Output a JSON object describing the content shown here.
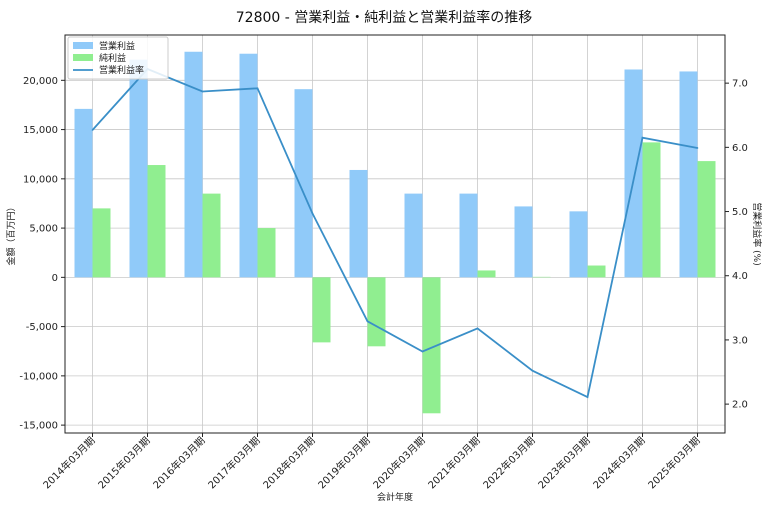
{
  "chart_data": {
    "type": "bar",
    "title": "72800 - 営業利益・純利益と営業利益率の推移",
    "xlabel": "会計年度",
    "ylabel": "金額（百万円）",
    "y2label": "営業利益率 (%)",
    "categories": [
      "2014年03月期",
      "2015年03月期",
      "2016年03月期",
      "2017年03月期",
      "2018年03月期",
      "2019年03月期",
      "2020年03月期",
      "2021年03月期",
      "2022年03月期",
      "2023年03月期",
      "2024年03月期",
      "2025年03月期"
    ],
    "series": [
      {
        "name": "営業利益",
        "axis": "left",
        "kind": "bar",
        "color": "#90caf9",
        "values": [
          17100,
          22100,
          22900,
          22700,
          19100,
          10900,
          8500,
          8500,
          7200,
          6700,
          21100,
          20900
        ]
      },
      {
        "name": "純利益",
        "axis": "left",
        "kind": "bar",
        "color": "#90ee90",
        "values": [
          7000,
          11400,
          8500,
          5000,
          -6600,
          -7000,
          -13800,
          700,
          50,
          1200,
          13700,
          11800
        ]
      },
      {
        "name": "営業利益率",
        "axis": "right",
        "kind": "line",
        "color": "#3a8fc8",
        "values": [
          6.27,
          7.22,
          6.87,
          6.92,
          4.97,
          3.29,
          2.82,
          3.18,
          2.52,
          2.11,
          6.15,
          5.99
        ]
      }
    ],
    "ylim": [
      -15800,
      24600
    ],
    "yticks": [
      -15000,
      -10000,
      -5000,
      0,
      5000,
      10000,
      15000,
      20000
    ],
    "ytick_labels": [
      "-15,000",
      "-10,000",
      "-5,000",
      "0",
      "5,000",
      "10,000",
      "15,000",
      "20,000"
    ],
    "y2lim": [
      1.55,
      7.75
    ],
    "y2ticks": [
      2.0,
      3.0,
      4.0,
      5.0,
      6.0,
      7.0
    ],
    "y2tick_labels": [
      "2.0",
      "3.0",
      "4.0",
      "5.0",
      "6.0",
      "7.0"
    ],
    "grid": true,
    "legend": "top-left"
  }
}
